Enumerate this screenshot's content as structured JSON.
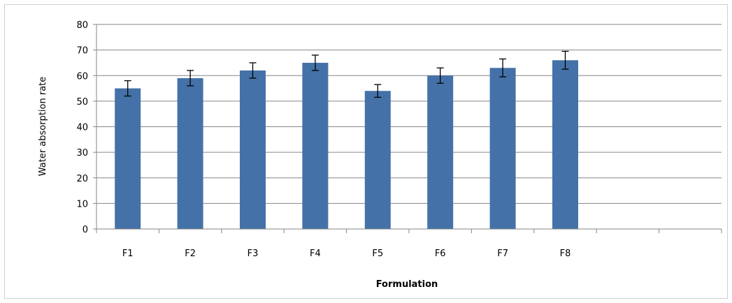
{
  "chart_data": {
    "type": "bar",
    "xlabel": "Formulation",
    "ylabel": "Water absorption rate",
    "categories": [
      "F1",
      "F2",
      "F3",
      "F4",
      "F5",
      "F6",
      "F7",
      "F8",
      "",
      ""
    ],
    "values": [
      55,
      59,
      62,
      65,
      54,
      60,
      63,
      66,
      null,
      null
    ],
    "error_bars": [
      3,
      3,
      3,
      3,
      2.5,
      3,
      3.5,
      3.5,
      null,
      null
    ],
    "ylim": [
      0,
      80
    ],
    "yticks": [
      0,
      10,
      20,
      30,
      40,
      50,
      60,
      70,
      80
    ],
    "grid": "horizontal",
    "legend": "none",
    "colors": {
      "bar": "#4472a8",
      "grid": "#868686",
      "axis": "#868686",
      "error_bar": "#000000"
    }
  }
}
